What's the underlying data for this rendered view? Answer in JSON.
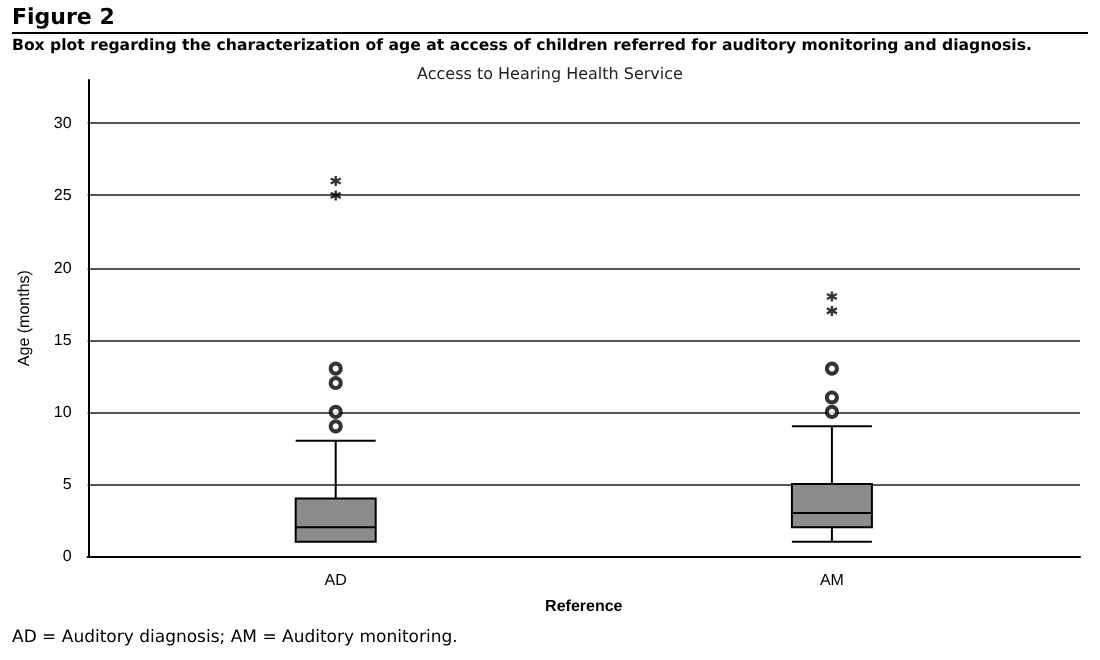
{
  "chart_data": {
    "type": "box",
    "title": "Access to Hearing Health Service",
    "annotations": [
      "Figure 2",
      "Box plot regarding the characterization of age at access of children referred for auditory monitoring and diagnosis.",
      "AD = Auditory diagnosis; AM = Auditory monitoring."
    ],
    "xlabel": "Reference",
    "ylabel": "Age (months)",
    "categories": [
      "AD",
      "AM"
    ],
    "series": [
      {
        "color": "#8c8c8c",
        "boxes": [
          {
            "low": 1,
            "q1": 1,
            "median": 2,
            "q3": 4,
            "high": 8,
            "outliers": [
              9,
              10,
              12,
              13
            ]
          },
          {
            "low": 1,
            "q1": 2,
            "median": 3,
            "q3": 5,
            "high": 9,
            "outliers": [
              10,
              11,
              13
            ]
          }
        ]
      },
      {
        "type": "scatter",
        "marker": "cross",
        "color": "#000000",
        "x": [
          "AD",
          "AD",
          "AM",
          "AM"
        ],
        "values": [
          25,
          26,
          17,
          18
        ]
      }
    ],
    "ylim": [
      0,
      33
    ],
    "yticks": [
      0,
      5,
      10,
      15,
      20,
      25,
      30
    ],
    "grid": "y"
  }
}
